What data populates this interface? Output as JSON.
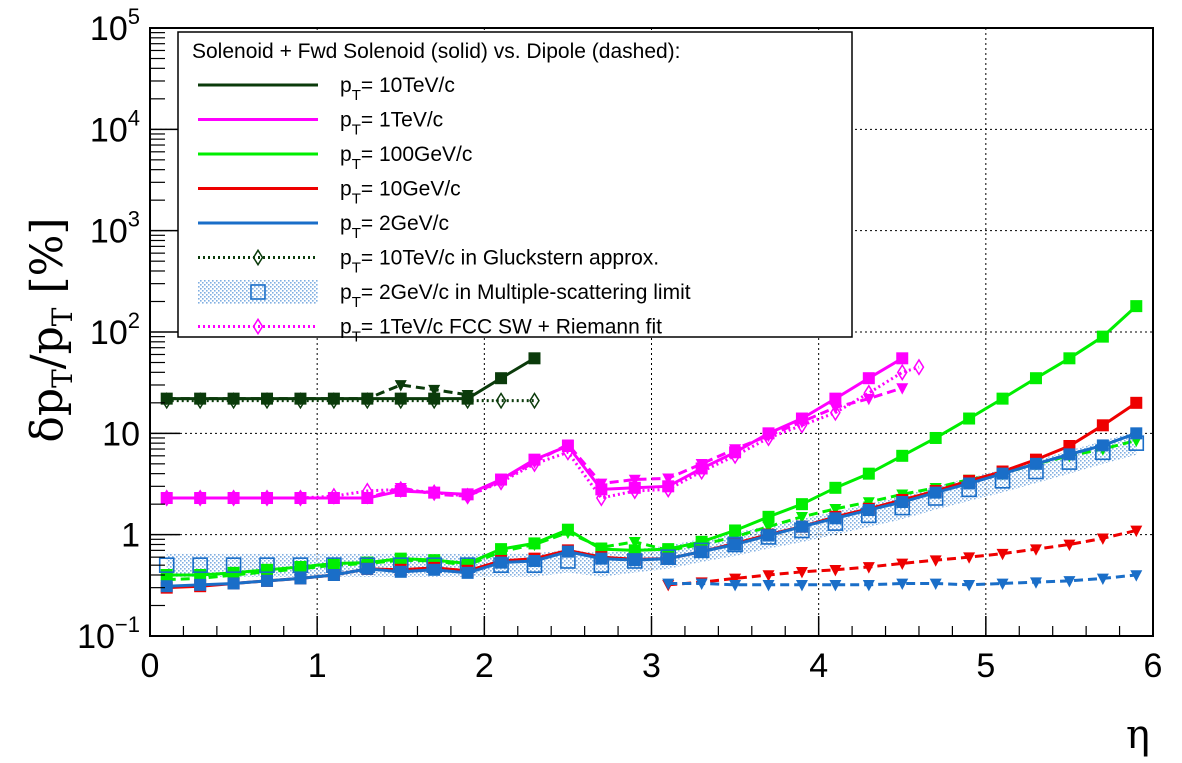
{
  "chart_data": {
    "type": "line",
    "title": "",
    "xlabel": "η",
    "ylabel_main": "δp",
    "ylabel_sub": "T",
    "ylabel_mid": "/p",
    "ylabel_sub2": "T",
    "ylabel_unit": " [%]",
    "xlim": [
      0,
      6
    ],
    "ylim": [
      0.1,
      100000
    ],
    "yscale": "log",
    "grid": true,
    "legend_placement": "top-left",
    "x_ticks": [
      "0",
      "1",
      "2",
      "3",
      "4",
      "5",
      "6"
    ],
    "y_ticks": [
      {
        "value": 0.1,
        "base": "10",
        "exp": "−1"
      },
      {
        "value": 1,
        "base": "1",
        "exp": ""
      },
      {
        "value": 10,
        "base": "10",
        "exp": ""
      },
      {
        "value": 100,
        "base": "10",
        "exp": "2"
      },
      {
        "value": 1000,
        "base": "10",
        "exp": "3"
      },
      {
        "value": 10000,
        "base": "10",
        "exp": "4"
      },
      {
        "value": 100000,
        "base": "10",
        "exp": "5"
      }
    ],
    "legend": {
      "header": "Solenoid + Fwd Solenoid (solid) vs. Dipole (dashed):",
      "entries": [
        {
          "p": "p",
          "sub": "T",
          "text": "= 10TeV/c",
          "color": "#0b3b0b",
          "style": "solid",
          "marker": "none"
        },
        {
          "p": "p",
          "sub": "T",
          "text": "= 1TeV/c",
          "color": "#ff00ff",
          "style": "solid",
          "marker": "none"
        },
        {
          "p": "p",
          "sub": "T",
          "text": "= 100GeV/c",
          "color": "#00ee00",
          "style": "solid",
          "marker": "none"
        },
        {
          "p": "p",
          "sub": "T",
          "text": "= 10GeV/c",
          "color": "#ee0000",
          "style": "solid",
          "marker": "none"
        },
        {
          "p": "p",
          "sub": "T",
          "text": "= 2GeV/c",
          "color": "#1a6ec8",
          "style": "solid",
          "marker": "none"
        },
        {
          "p": "p",
          "sub": "T",
          "text": "= 10TeV/c in Gluckstern approx.",
          "color": "#0b3b0b",
          "style": "dotted",
          "marker": "open-diamond"
        },
        {
          "p": "p",
          "sub": "T",
          "text": "= 2GeV/c in Multiple-scattering limit",
          "color": "#1a6ec8",
          "style": "band",
          "marker": "open-square"
        },
        {
          "p": "p",
          "sub": "T",
          "text": "= 1TeV/c FCC SW + Riemann fit",
          "color": "#ff00ff",
          "style": "dotted",
          "marker": "open-diamond"
        }
      ]
    },
    "colors": {
      "p10TeV": "#0b3b0b",
      "p1TeV": "#ff00ff",
      "p100GeV": "#00ee00",
      "p10GeV": "#ee0000",
      "p2GeV": "#1a6ec8",
      "ms_band": "#9cb8e8"
    },
    "series": [
      {
        "id": "10TeV_solenoid",
        "color": "#0b3b0b",
        "style": "solid",
        "marker": "square",
        "x": [
          0.1,
          0.3,
          0.5,
          0.7,
          0.9,
          1.1,
          1.3,
          1.5,
          1.7,
          1.9,
          2.1,
          2.3
        ],
        "y": [
          22,
          22,
          22,
          22,
          22,
          22,
          22,
          22,
          22,
          22,
          35,
          55
        ]
      },
      {
        "id": "10TeV_dipole",
        "color": "#0b3b0b",
        "style": "dashed",
        "marker": "triangle-down",
        "x": [
          0.1,
          0.3,
          0.5,
          0.7,
          0.9,
          1.1,
          1.3,
          1.5,
          1.7,
          1.9
        ],
        "y": [
          22,
          22,
          22,
          22,
          22,
          22,
          22,
          30,
          27,
          24
        ]
      },
      {
        "id": "10TeV_gluckstern",
        "color": "#0b3b0b",
        "style": "dotted",
        "marker": "open-diamond",
        "x": [
          0.1,
          0.3,
          0.5,
          0.7,
          0.9,
          1.1,
          1.3,
          1.5,
          1.7,
          1.9,
          2.1,
          2.3
        ],
        "y": [
          21,
          21,
          21,
          21,
          21,
          21,
          21,
          21,
          21,
          21,
          21,
          21
        ]
      },
      {
        "id": "1TeV_solenoid",
        "color": "#ff00ff",
        "style": "solid",
        "marker": "square",
        "x": [
          0.1,
          0.3,
          0.5,
          0.7,
          0.9,
          1.1,
          1.3,
          1.5,
          1.7,
          1.9,
          2.1,
          2.3,
          2.5,
          2.7,
          2.9,
          3.1,
          3.3,
          3.5,
          3.7,
          3.9,
          4.1,
          4.3,
          4.5
        ],
        "y": [
          2.3,
          2.3,
          2.3,
          2.3,
          2.3,
          2.3,
          2.3,
          2.7,
          2.6,
          2.5,
          3.5,
          5.5,
          7.5,
          2.8,
          2.9,
          3.0,
          4.5,
          6.5,
          10,
          14,
          22,
          35,
          55
        ]
      },
      {
        "id": "1TeV_dipole",
        "color": "#ff00ff",
        "style": "dashed",
        "marker": "triangle-down",
        "x": [
          0.1,
          0.3,
          0.5,
          0.7,
          0.9,
          1.1,
          1.3,
          1.5,
          1.7,
          1.9,
          2.1,
          2.3,
          2.5,
          2.7,
          2.9,
          3.1,
          3.3,
          3.5,
          3.7,
          3.9,
          4.1,
          4.3,
          4.5
        ],
        "y": [
          2.3,
          2.3,
          2.3,
          2.3,
          2.3,
          2.3,
          2.3,
          2.9,
          2.5,
          2.4,
          3.4,
          5.2,
          7.8,
          3.2,
          3.5,
          3.6,
          5.0,
          7.0,
          9.5,
          13,
          18,
          22,
          28
        ]
      },
      {
        "id": "1TeV_riemann",
        "color": "#ff00ff",
        "style": "dotted",
        "marker": "open-diamond",
        "x": [
          0.1,
          0.3,
          0.5,
          0.7,
          0.9,
          1.1,
          1.3,
          1.5,
          1.7,
          1.9,
          2.1,
          2.3,
          2.5,
          2.7,
          2.9,
          3.1,
          3.3,
          3.5,
          3.7,
          3.9,
          4.1,
          4.3,
          4.5,
          4.6
        ],
        "y": [
          2.3,
          2.3,
          2.3,
          2.3,
          2.3,
          2.4,
          2.7,
          2.8,
          2.6,
          2.4,
          3.3,
          5.0,
          6.5,
          2.3,
          2.7,
          2.8,
          4.2,
          6.0,
          9.0,
          12,
          16,
          25,
          40,
          45
        ]
      },
      {
        "id": "100GeV_solenoid",
        "color": "#00ee00",
        "style": "solid",
        "marker": "square",
        "x": [
          0.1,
          0.3,
          0.5,
          0.7,
          0.9,
          1.1,
          1.3,
          1.5,
          1.7,
          1.9,
          2.1,
          2.3,
          2.5,
          2.7,
          2.9,
          3.1,
          3.3,
          3.5,
          3.7,
          3.9,
          4.1,
          4.3,
          4.5,
          4.7,
          4.9,
          5.1,
          5.3,
          5.5,
          5.7,
          5.9
        ],
        "y": [
          0.4,
          0.4,
          0.42,
          0.45,
          0.48,
          0.52,
          0.53,
          0.58,
          0.56,
          0.52,
          0.72,
          0.82,
          1.12,
          0.72,
          0.7,
          0.72,
          0.85,
          1.1,
          1.5,
          2.0,
          2.9,
          4.0,
          6.0,
          9.0,
          14,
          22,
          35,
          55,
          90,
          180
        ]
      },
      {
        "id": "100GeV_dipole",
        "color": "#00ee00",
        "style": "dashed",
        "marker": "triangle-down",
        "x": [
          0.1,
          0.3,
          0.5,
          0.7,
          0.9,
          1.1,
          1.3,
          1.5,
          1.7,
          1.9,
          2.1,
          2.3,
          2.5,
          2.7,
          2.9,
          3.1,
          3.3,
          3.5,
          3.7,
          3.9,
          4.1,
          4.3,
          4.5,
          4.7,
          4.9,
          5.1,
          5.3,
          5.5,
          5.7,
          5.9
        ],
        "y": [
          0.36,
          0.37,
          0.4,
          0.43,
          0.46,
          0.5,
          0.52,
          0.56,
          0.55,
          0.5,
          0.68,
          0.8,
          1.05,
          0.75,
          0.85,
          0.7,
          0.8,
          0.95,
          1.2,
          1.5,
          1.8,
          2.1,
          2.5,
          2.9,
          3.5,
          4.0,
          5.0,
          6.0,
          7.0,
          8.5
        ]
      },
      {
        "id": "10GeV_solenoid",
        "color": "#ee0000",
        "style": "solid",
        "marker": "square",
        "x": [
          0.1,
          0.3,
          0.5,
          0.7,
          0.9,
          1.1,
          1.3,
          1.5,
          1.7,
          1.9,
          2.1,
          2.3,
          2.5,
          2.7,
          2.9,
          3.1,
          3.3,
          3.5,
          3.7,
          3.9,
          4.1,
          4.3,
          4.5,
          4.7,
          4.9,
          5.1,
          5.3,
          5.5,
          5.7,
          5.9
        ],
        "y": [
          0.3,
          0.31,
          0.33,
          0.35,
          0.37,
          0.4,
          0.46,
          0.45,
          0.47,
          0.44,
          0.55,
          0.58,
          0.7,
          0.6,
          0.57,
          0.58,
          0.68,
          0.82,
          1.0,
          1.2,
          1.5,
          1.8,
          2.2,
          2.7,
          3.4,
          4.2,
          5.5,
          7.5,
          12,
          20
        ]
      },
      {
        "id": "10GeV_dipole",
        "color": "#ee0000",
        "style": "dashed",
        "marker": "triangle-down",
        "x": [
          3.1,
          3.3,
          3.5,
          3.7,
          3.9,
          4.1,
          4.3,
          4.5,
          4.7,
          4.9,
          5.1,
          5.3,
          5.5,
          5.7,
          5.9
        ],
        "y": [
          0.32,
          0.34,
          0.37,
          0.4,
          0.43,
          0.45,
          0.48,
          0.52,
          0.56,
          0.6,
          0.65,
          0.72,
          0.8,
          0.92,
          1.1
        ]
      },
      {
        "id": "2GeV_ms_limit",
        "color": "#1a6ec8",
        "style": "band",
        "marker": "open-square",
        "x": [
          0.1,
          0.3,
          0.5,
          0.7,
          0.9,
          1.1,
          1.3,
          1.5,
          1.7,
          1.9,
          2.1,
          2.3,
          2.5,
          2.7,
          2.9,
          3.1,
          3.3,
          3.5,
          3.7,
          3.9,
          4.1,
          4.3,
          4.5,
          4.7,
          4.9,
          5.1,
          5.3,
          5.5,
          5.7,
          5.9
        ],
        "y": [
          0.5,
          0.5,
          0.5,
          0.5,
          0.5,
          0.5,
          0.5,
          0.5,
          0.5,
          0.5,
          0.5,
          0.5,
          0.55,
          0.5,
          0.55,
          0.6,
          0.7,
          0.8,
          0.95,
          1.1,
          1.3,
          1.55,
          1.85,
          2.3,
          2.8,
          3.4,
          4.2,
          5.2,
          6.5,
          8.0
        ]
      },
      {
        "id": "2GeV_solenoid",
        "color": "#1a6ec8",
        "style": "solid",
        "marker": "square",
        "x": [
          0.1,
          0.3,
          0.5,
          0.7,
          0.9,
          1.1,
          1.3,
          1.5,
          1.7,
          1.9,
          2.1,
          2.3,
          2.5,
          2.7,
          2.9,
          3.1,
          3.3,
          3.5,
          3.7,
          3.9,
          4.1,
          4.3,
          4.5,
          4.7,
          4.9,
          5.1,
          5.3,
          5.5,
          5.7,
          5.9
        ],
        "y": [
          0.31,
          0.32,
          0.33,
          0.35,
          0.37,
          0.4,
          0.46,
          0.43,
          0.45,
          0.42,
          0.53,
          0.55,
          0.68,
          0.58,
          0.56,
          0.58,
          0.68,
          0.8,
          0.98,
          1.2,
          1.45,
          1.75,
          2.1,
          2.6,
          3.2,
          4.0,
          5.0,
          6.2,
          7.6,
          10
        ]
      },
      {
        "id": "2GeV_dipole",
        "color": "#1a6ec8",
        "style": "dashed",
        "marker": "triangle-down",
        "x": [
          3.1,
          3.3,
          3.5,
          3.7,
          3.9,
          4.1,
          4.3,
          4.5,
          4.7,
          4.9,
          5.1,
          5.3,
          5.5,
          5.7,
          5.9
        ],
        "y": [
          0.33,
          0.33,
          0.32,
          0.32,
          0.32,
          0.32,
          0.32,
          0.33,
          0.33,
          0.32,
          0.33,
          0.34,
          0.35,
          0.37,
          0.4
        ]
      }
    ]
  }
}
